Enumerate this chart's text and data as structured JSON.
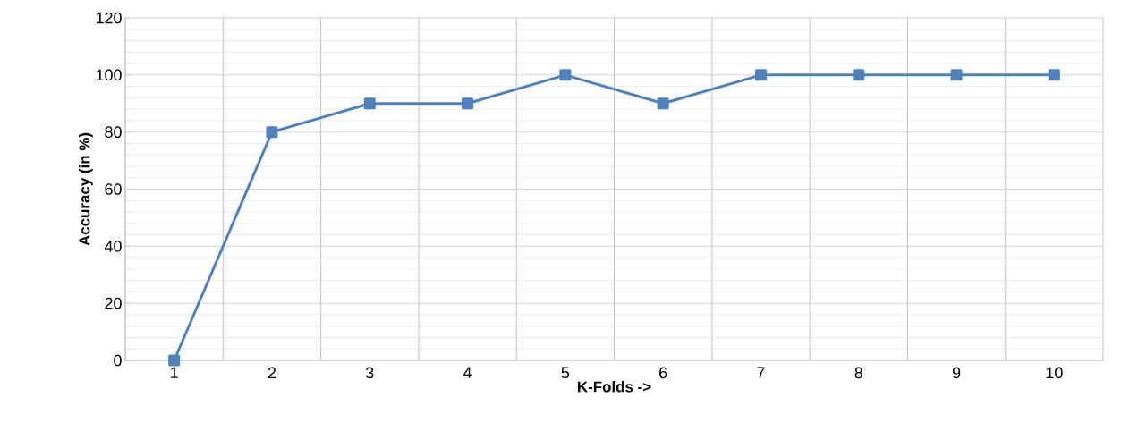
{
  "chart_data": {
    "type": "line",
    "xlabel": "K-Folds ->",
    "ylabel": "Accuracy (in %)",
    "categories": [
      "1",
      "2",
      "3",
      "4",
      "5",
      "6",
      "7",
      "8",
      "9",
      "10"
    ],
    "series": [
      {
        "color": "#4f81bd",
        "values": [
          0,
          80,
          90,
          90,
          100,
          90,
          100,
          100,
          100,
          100
        ]
      }
    ],
    "ylim": [
      0,
      120
    ],
    "yticks": [
      0,
      20,
      40,
      60,
      80,
      100,
      120
    ],
    "grid": true,
    "marker": "square",
    "line_style": "solid"
  }
}
